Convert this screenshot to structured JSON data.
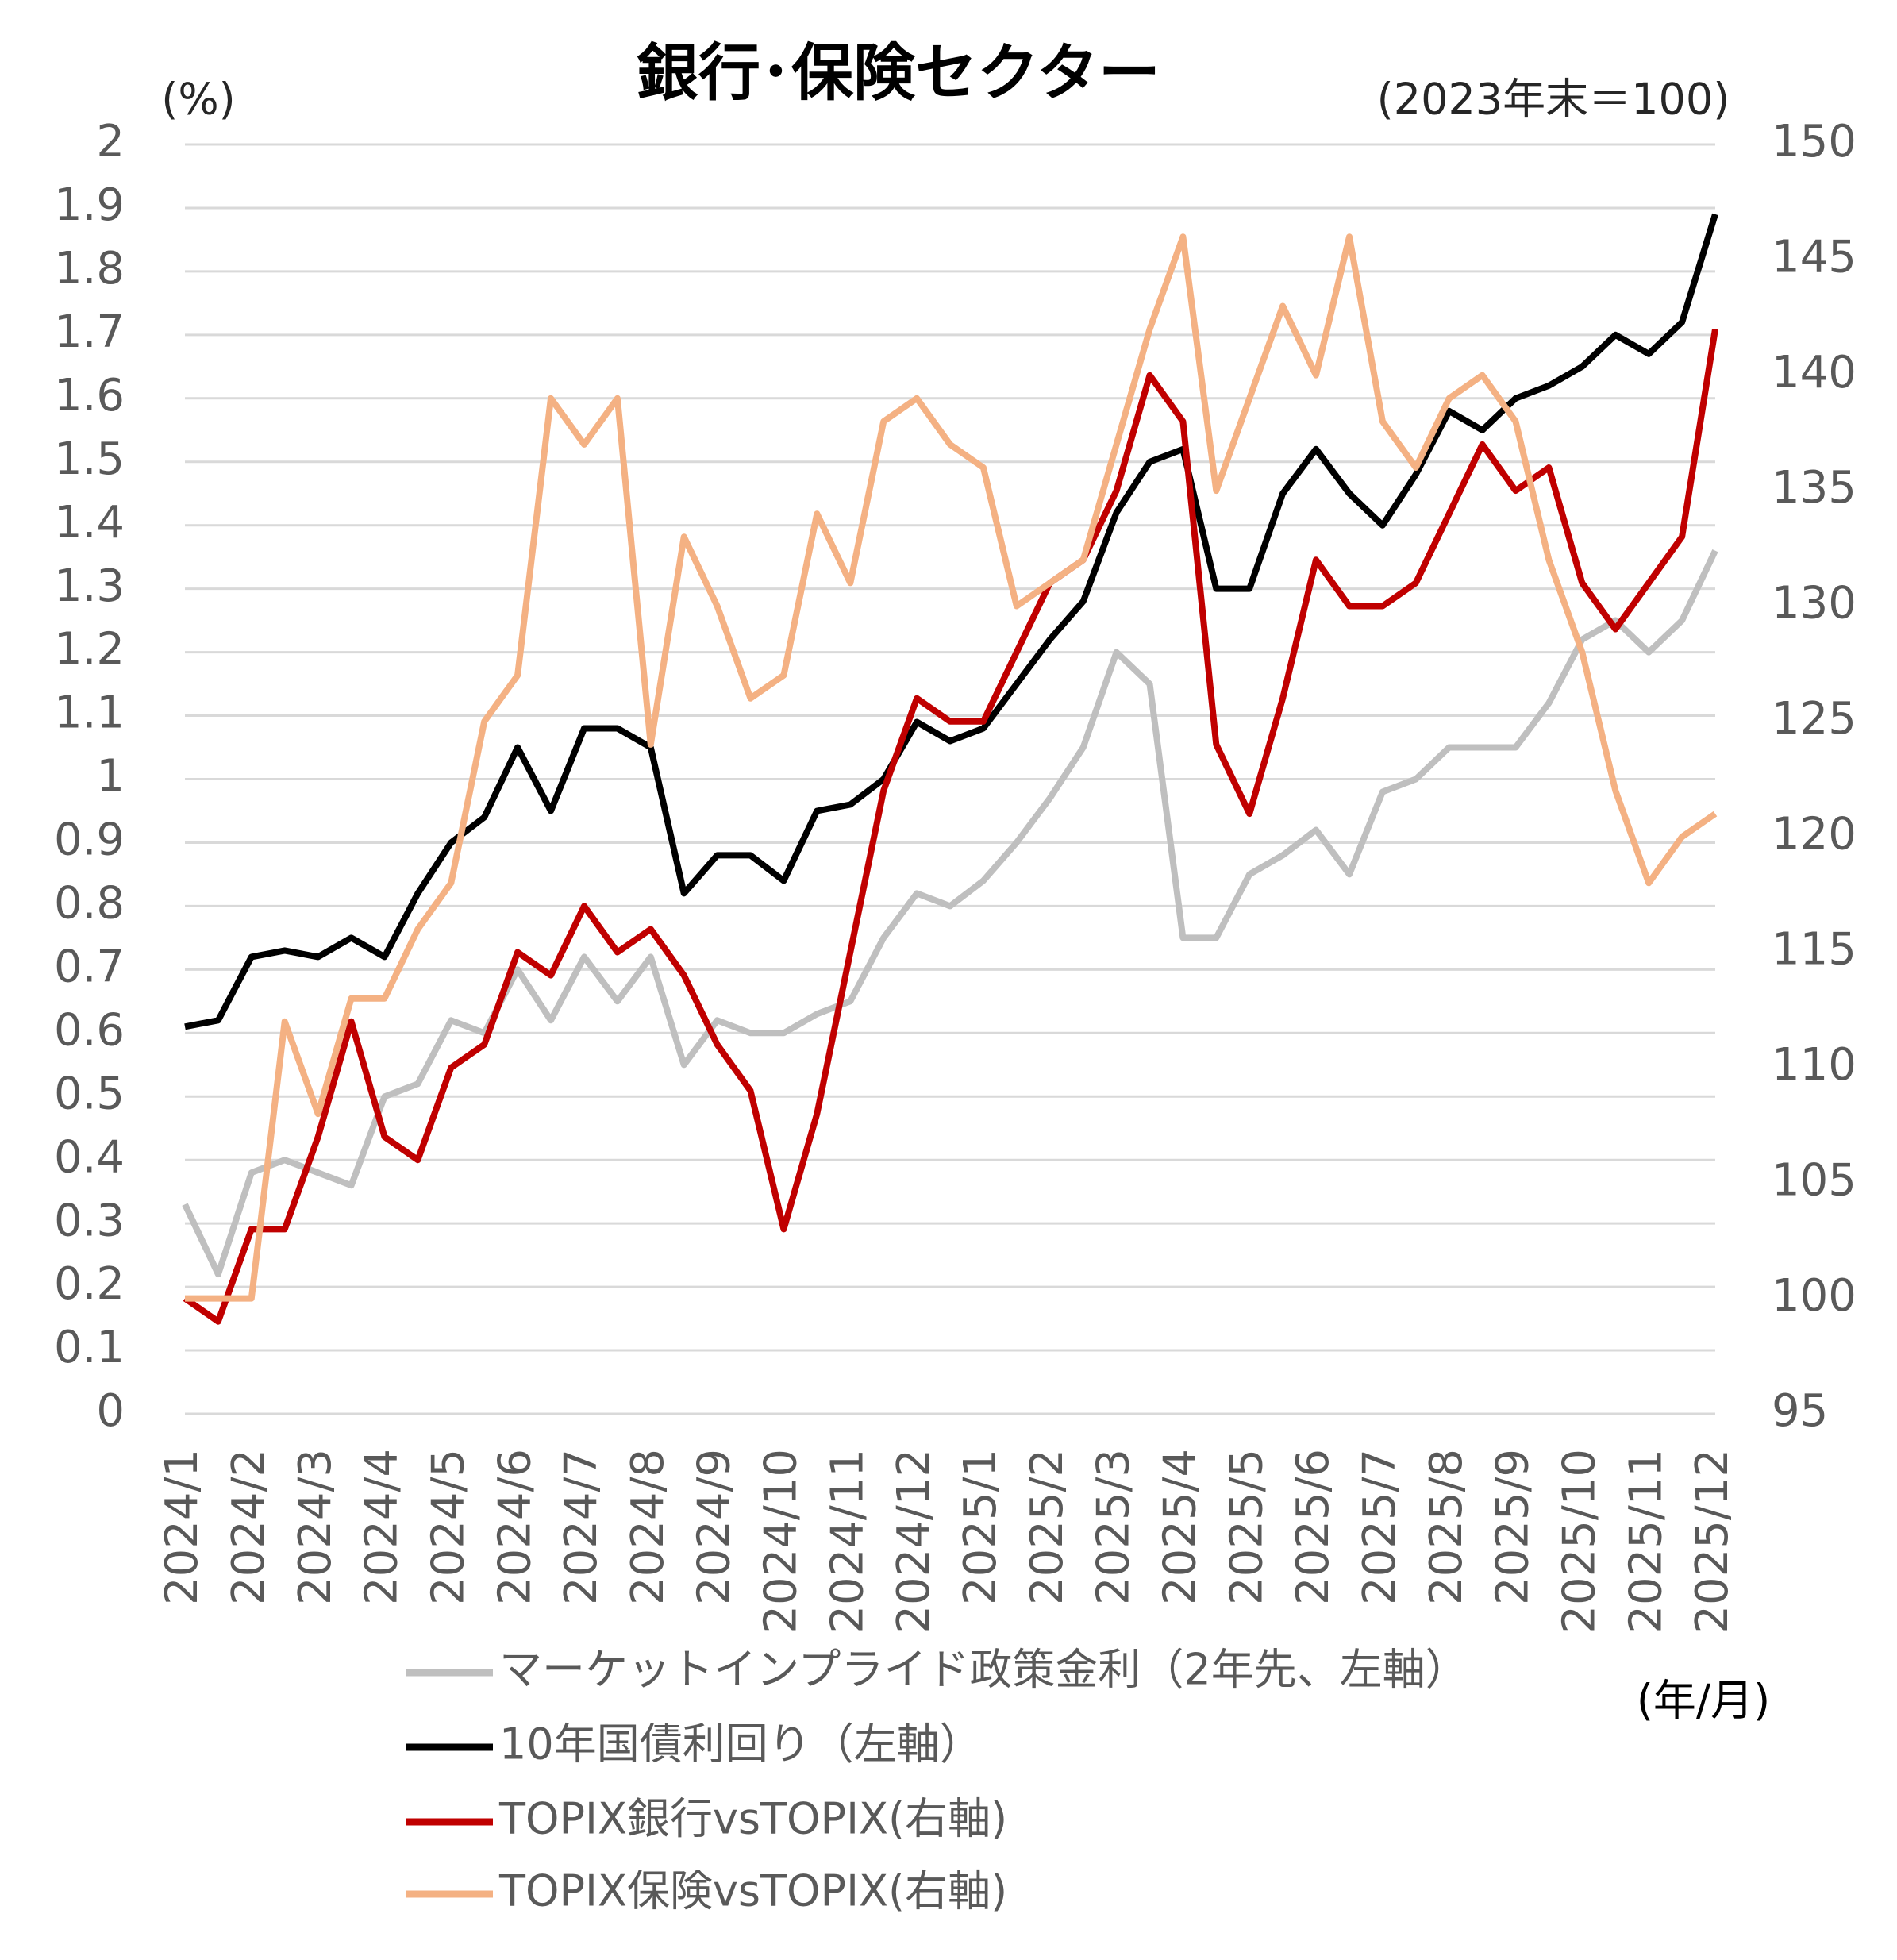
{
  "chart_data": {
    "type": "line",
    "title": "銀行･保険セクター",
    "y_label": "(%)",
    "y2_label": "(2023年末＝100)",
    "x_label": "(年/月)",
    "categories": [
      "2024/1",
      null,
      "2024/2",
      null,
      "2024/3",
      null,
      "2024/4",
      null,
      "2024/5",
      null,
      "2024/6",
      null,
      "2024/7",
      null,
      "2024/8",
      null,
      "2024/9",
      null,
      "2024/10",
      null,
      "2024/11",
      null,
      "2024/12",
      null,
      "2025/1",
      null,
      "2025/2",
      null,
      "2025/3",
      null,
      "2025/4",
      null,
      "2025/5",
      null,
      "2025/6",
      null,
      "2025/7",
      null,
      "2025/8",
      null,
      "2025/9",
      null,
      "2025/10",
      null,
      "2025/11",
      null,
      "2025/12"
    ],
    "ylim": [
      0,
      2
    ],
    "yticks": [
      0,
      0.1,
      0.2,
      0.3,
      0.4,
      0.5,
      0.6,
      0.7,
      0.8,
      0.9,
      1,
      1.1,
      1.2,
      1.3,
      1.4,
      1.5,
      1.6,
      1.7,
      1.8,
      1.9,
      2
    ],
    "y2lim": [
      95,
      150
    ],
    "y2ticks": [
      95,
      100,
      105,
      110,
      115,
      120,
      125,
      130,
      135,
      140,
      145,
      150
    ],
    "grid": true,
    "series": [
      {
        "name": "マーケットインプライド政策金利（2年先、左軸）",
        "color": "#bfbfbf",
        "axis": "y",
        "values": [
          0.33,
          0.22,
          0.38,
          0.4,
          0.38,
          0.36,
          0.5,
          0.52,
          0.62,
          0.6,
          0.7,
          0.62,
          0.72,
          0.65,
          0.72,
          0.55,
          0.62,
          0.6,
          0.6,
          0.63,
          0.65,
          0.75,
          0.82,
          0.8,
          0.84,
          0.9,
          0.97,
          1.05,
          1.2,
          1.15,
          0.75,
          0.75,
          0.85,
          0.88,
          0.92,
          0.85,
          0.98,
          1.0,
          1.05,
          1.05,
          1.05,
          1.12,
          1.22,
          1.25,
          1.2,
          1.25,
          1.36
        ]
      },
      {
        "name": "10年国債利回り（左軸）",
        "color": "#000000",
        "axis": "y",
        "values": [
          0.61,
          0.62,
          0.72,
          0.73,
          0.72,
          0.75,
          0.72,
          0.82,
          0.9,
          0.94,
          1.05,
          0.95,
          1.08,
          1.08,
          1.05,
          0.82,
          0.88,
          0.88,
          0.84,
          0.95,
          0.96,
          1.0,
          1.09,
          1.06,
          1.08,
          1.15,
          1.22,
          1.28,
          1.42,
          1.5,
          1.52,
          1.3,
          1.3,
          1.45,
          1.52,
          1.45,
          1.4,
          1.48,
          1.58,
          1.55,
          1.6,
          1.62,
          1.65,
          1.7,
          1.67,
          1.72,
          1.89
        ]
      },
      {
        "name": "TOPIX銀行vsTOPIX(右軸)",
        "color": "#c00000",
        "axis": "y2",
        "values": [
          100,
          99,
          103,
          103,
          107,
          112,
          107,
          106,
          110,
          111,
          115,
          114,
          117,
          115,
          116,
          114,
          111,
          109,
          103,
          108,
          115,
          122,
          126,
          125,
          125,
          128,
          131,
          132,
          135,
          140,
          138,
          124,
          121,
          126,
          132,
          130,
          130,
          131,
          134,
          137,
          135,
          136,
          131,
          129,
          131,
          133,
          142
        ]
      },
      {
        "name": "TOPIX保険vsTOPIX(右軸)",
        "color": "#f4b183",
        "axis": "y2",
        "values": [
          100,
          100,
          100,
          112,
          108,
          113,
          113,
          116,
          118,
          125,
          127,
          139,
          137,
          139,
          124,
          133,
          130,
          126,
          127,
          134,
          131,
          138,
          139,
          137,
          136,
          130,
          131,
          132,
          137,
          142,
          146,
          135,
          139,
          143,
          140,
          146,
          138,
          136,
          139,
          140,
          138,
          132,
          128,
          122,
          118,
          120,
          121
        ]
      }
    ]
  }
}
